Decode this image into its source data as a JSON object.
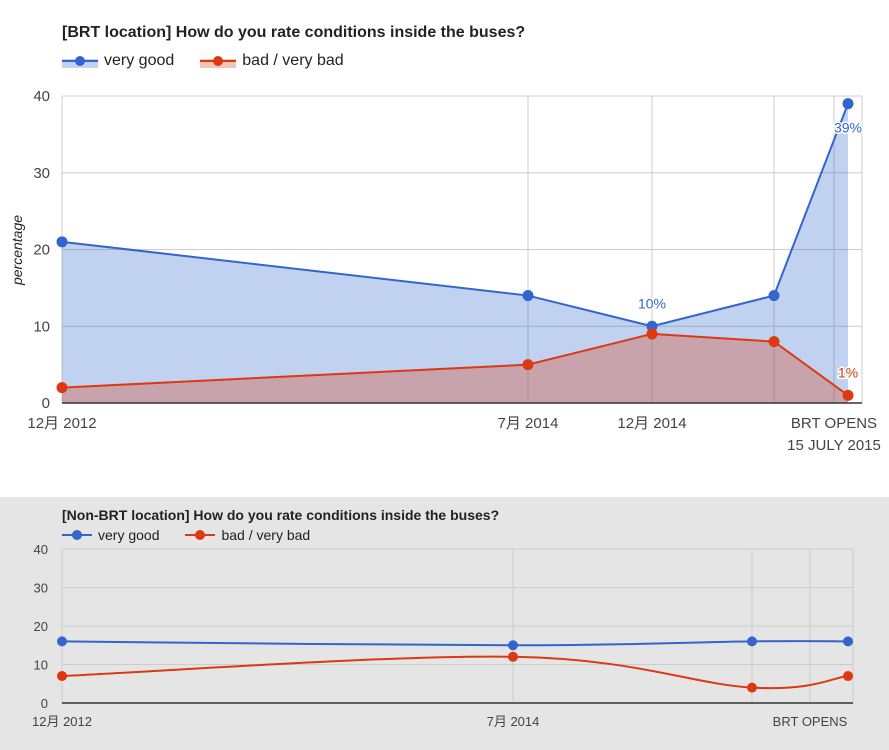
{
  "colors": {
    "very_good": "#3366cc",
    "bad": "#dc3912",
    "grid": "#cccccc",
    "bg_bottom": "#e5e5e5"
  },
  "chart_data": [
    {
      "type": "area",
      "title": "[BRT location] How do you rate conditions inside the buses?",
      "ylabel": "percentage",
      "ylim": [
        0,
        40
      ],
      "yticks": [
        "0",
        "10",
        "20",
        "30",
        "40"
      ],
      "xticks": [
        {
          "label": "12月 2012"
        },
        {
          "label": "7月 2014"
        },
        {
          "label": "12月 2014"
        },
        {
          "label": "BRT OPENS",
          "label2": "15 JULY 2015"
        }
      ],
      "series": [
        {
          "name": "very good",
          "values": [
            21,
            14,
            10,
            14,
            39
          ]
        },
        {
          "name": "bad / very bad",
          "values": [
            2,
            5,
            9,
            8,
            1
          ]
        }
      ],
      "annotations": [
        {
          "series": 0,
          "point": 2,
          "text": "10%"
        },
        {
          "series": 0,
          "point": 4,
          "text": "39%"
        },
        {
          "series": 1,
          "point": 4,
          "text": "1%"
        }
      ],
      "legend": "top-left",
      "grid": true
    },
    {
      "type": "line",
      "title": "[Non-BRT location] How do you rate conditions inside the buses?",
      "ylim": [
        0,
        40
      ],
      "yticks": [
        "0",
        "10",
        "20",
        "30",
        "40"
      ],
      "xticks": [
        {
          "label": "12月 2012"
        },
        {
          "label": "7月 2014"
        },
        {
          "label": "BRT OPENS"
        }
      ],
      "series": [
        {
          "name": "very good",
          "values": [
            16,
            15,
            16,
            16
          ]
        },
        {
          "name": "bad / very bad",
          "values": [
            7,
            12,
            4,
            7
          ]
        }
      ],
      "legend": "top-left",
      "grid": true
    }
  ]
}
